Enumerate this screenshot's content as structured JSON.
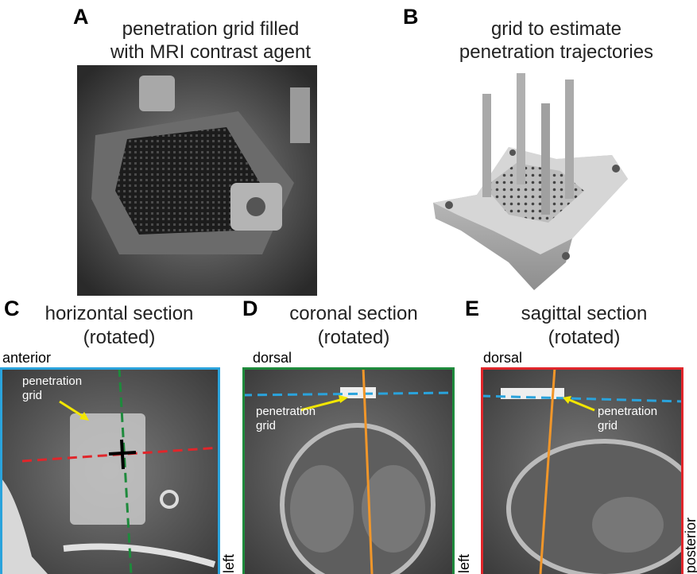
{
  "panels": [
    {
      "letter": "A",
      "title": [
        "penetration grid filled",
        "with MRI contrast agent"
      ]
    },
    {
      "letter": "B",
      "title": [
        "grid to estimate",
        "penetration trajectories"
      ]
    },
    {
      "letter": "C",
      "title": [
        "horizontal section",
        "(rotated)"
      ],
      "top_label": "anterior",
      "side_label": "left",
      "callout": [
        "penetration",
        "grid"
      ]
    },
    {
      "letter": "D",
      "title": [
        "coronal section",
        "(rotated)"
      ],
      "top_label": "dorsal",
      "side_label": "left",
      "callout": [
        "penetration",
        "grid"
      ]
    },
    {
      "letter": "E",
      "title": [
        "sagittal section",
        "(rotated)"
      ],
      "top_label": "dorsal",
      "side_label": "posterior",
      "callout": [
        "penetration",
        "grid"
      ]
    }
  ]
}
